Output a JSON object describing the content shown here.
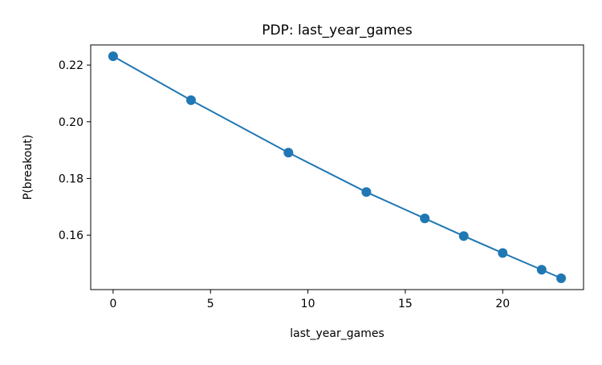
{
  "chart_data": {
    "type": "line",
    "title": "PDP: last_year_games",
    "xlabel": "last_year_games",
    "ylabel": "P(breakout)",
    "x": [
      0,
      4,
      9,
      13,
      16,
      18,
      20,
      22,
      23
    ],
    "series": [
      {
        "values": [
          0.2231,
          0.2076,
          0.1891,
          0.1752,
          0.1659,
          0.1597,
          0.1537,
          0.1478,
          0.1448
        ],
        "color": "#1f77b4"
      }
    ],
    "xlim": [
      -1.15,
      24.15
    ],
    "ylim": [
      0.1408,
      0.2271
    ],
    "xticks": [
      0,
      5,
      10,
      15,
      20
    ],
    "xtick_labels": [
      "0",
      "5",
      "10",
      "15",
      "20"
    ],
    "yticks": [
      0.16,
      0.18,
      0.2,
      0.22
    ],
    "ytick_labels": [
      "0.16",
      "0.18",
      "0.20",
      "0.22"
    ],
    "grid": false,
    "marker": "circle"
  }
}
